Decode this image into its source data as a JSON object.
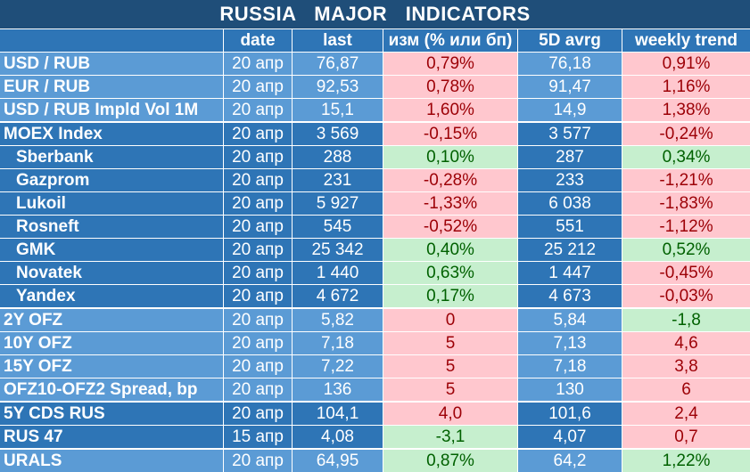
{
  "title": "RUSSIA   MAJOR   INDICATORS",
  "headers": [
    "",
    "date",
    "last",
    "изм (% или бп)",
    "5D avrg",
    "weekly trend"
  ],
  "colors": {
    "title_bg": "#1f4e79",
    "header_bg": "#2e75b6",
    "light_blue": "#5b9bd5",
    "dark_blue": "#2e75b6",
    "negative_bg": "#ffc7ce",
    "negative_text": "#9c0006",
    "positive_bg": "#c6efce",
    "positive_text": "#006100"
  },
  "rows": [
    {
      "name": "USD / RUB",
      "date": "20 апр",
      "last": "76,87",
      "change": "0,79%",
      "avg5d": "76,18",
      "weekly": "0,91%",
      "change_tone": "neg",
      "weekly_tone": "neg",
      "group": "lb",
      "sub": false
    },
    {
      "name": "EUR / RUB",
      "date": "20 апр",
      "last": "92,53",
      "change": "0,78%",
      "avg5d": "91,47",
      "weekly": "1,16%",
      "change_tone": "neg",
      "weekly_tone": "neg",
      "group": "lb",
      "sub": false
    },
    {
      "name": "USD / RUB Impld Vol 1M",
      "date": "20 апр",
      "last": "15,1",
      "change": "1,60%",
      "avg5d": "14,9",
      "weekly": "1,38%",
      "change_tone": "neg",
      "weekly_tone": "neg",
      "group": "lb",
      "sub": false
    },
    {
      "name": "MOEX Index",
      "date": "20 апр",
      "last": "3 569",
      "change": "-0,15%",
      "avg5d": "3 577",
      "weekly": "-0,24%",
      "change_tone": "neg",
      "weekly_tone": "neg",
      "group": "db",
      "sub": false
    },
    {
      "name": "Sberbank",
      "date": "20 апр",
      "last": "288",
      "change": "0,10%",
      "avg5d": "287",
      "weekly": "0,34%",
      "change_tone": "pos",
      "weekly_tone": "pos",
      "group": "db",
      "sub": true
    },
    {
      "name": "Gazprom",
      "date": "20 апр",
      "last": "231",
      "change": "-0,28%",
      "avg5d": "233",
      "weekly": "-1,21%",
      "change_tone": "neg",
      "weekly_tone": "neg",
      "group": "db",
      "sub": true
    },
    {
      "name": "Lukoil",
      "date": "20 апр",
      "last": "5 927",
      "change": "-1,33%",
      "avg5d": "6 038",
      "weekly": "-1,83%",
      "change_tone": "neg",
      "weekly_tone": "neg",
      "group": "db",
      "sub": true
    },
    {
      "name": "Rosneft",
      "date": "20 апр",
      "last": "545",
      "change": "-0,52%",
      "avg5d": "551",
      "weekly": "-1,12%",
      "change_tone": "neg",
      "weekly_tone": "neg",
      "group": "db",
      "sub": true
    },
    {
      "name": "GMK",
      "date": "20 апр",
      "last": "25 342",
      "change": "0,40%",
      "avg5d": "25 212",
      "weekly": "0,52%",
      "change_tone": "pos",
      "weekly_tone": "pos",
      "group": "db",
      "sub": true
    },
    {
      "name": "Novatek",
      "date": "20 апр",
      "last": "1 440",
      "change": "0,63%",
      "avg5d": "1 447",
      "weekly": "-0,45%",
      "change_tone": "pos",
      "weekly_tone": "neg",
      "group": "db",
      "sub": true
    },
    {
      "name": "Yandex",
      "date": "20 апр",
      "last": "4 672",
      "change": "0,17%",
      "avg5d": "4 673",
      "weekly": "-0,03%",
      "change_tone": "pos",
      "weekly_tone": "neg",
      "group": "db",
      "sub": true
    },
    {
      "name": "2Y OFZ",
      "date": "20 апр",
      "last": "5,82",
      "change": "0",
      "avg5d": "5,84",
      "weekly": "-1,8",
      "change_tone": "neg",
      "weekly_tone": "pos",
      "group": "lb",
      "sub": false
    },
    {
      "name": "10Y OFZ",
      "date": "20 апр",
      "last": "7,18",
      "change": "5",
      "avg5d": "7,13",
      "weekly": "4,6",
      "change_tone": "neg",
      "weekly_tone": "neg",
      "group": "lb",
      "sub": false
    },
    {
      "name": "15Y OFZ",
      "date": "20 апр",
      "last": "7,22",
      "change": "5",
      "avg5d": "7,18",
      "weekly": "3,8",
      "change_tone": "neg",
      "weekly_tone": "neg",
      "group": "lb",
      "sub": false
    },
    {
      "name": "OFZ10-OFZ2 Spread, bp",
      "date": "20 апр",
      "last": "136",
      "change": "5",
      "avg5d": "130",
      "weekly": "6",
      "change_tone": "neg",
      "weekly_tone": "neg",
      "group": "lb",
      "sub": false
    },
    {
      "name": "5Y CDS RUS",
      "date": "20 апр",
      "last": "104,1",
      "change": "4,0",
      "avg5d": "101,6",
      "weekly": "2,4",
      "change_tone": "neg",
      "weekly_tone": "neg",
      "group": "db",
      "sub": false
    },
    {
      "name": "RUS 47",
      "date": "15 апр",
      "last": "4,08",
      "change": "-3,1",
      "avg5d": "4,07",
      "weekly": "0,7",
      "change_tone": "pos",
      "weekly_tone": "neg",
      "group": "db",
      "sub": false
    },
    {
      "name": "URALS",
      "date": "20 апр",
      "last": "64,95",
      "change": "0,87%",
      "avg5d": "64,2",
      "weekly": "1,22%",
      "change_tone": "pos",
      "weekly_tone": "pos",
      "group": "lb",
      "sub": false
    }
  ]
}
